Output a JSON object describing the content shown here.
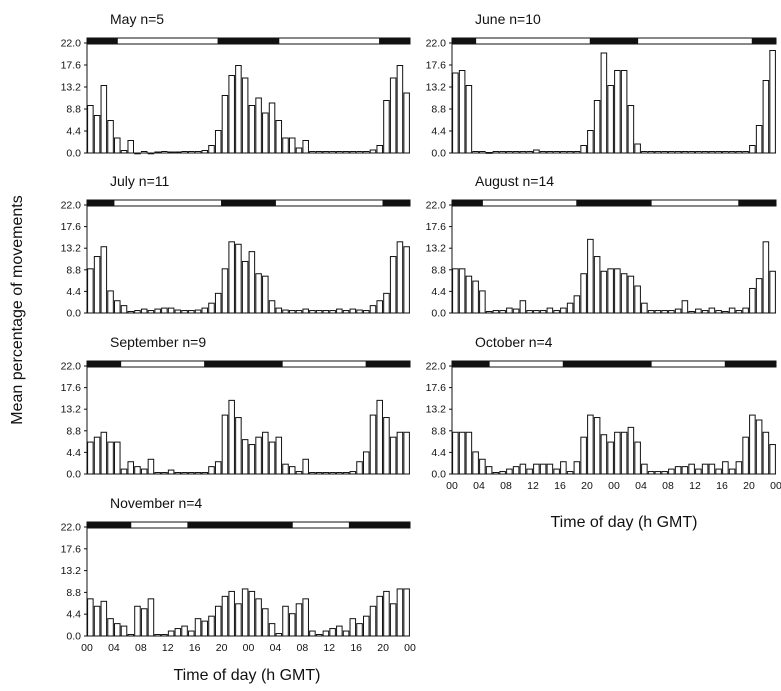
{
  "ylabel": "Mean percentage of movements",
  "xlabel": "Time of day (h GMT)",
  "xlabel_right": "Time of day (h GMT)",
  "yticks": [
    "0.0",
    "4.4",
    "8.8",
    "13.2",
    "17.6",
    "22.0"
  ],
  "xticks": [
    "00",
    "04",
    "08",
    "12",
    "16",
    "20",
    "00",
    "04",
    "08",
    "12",
    "16",
    "20",
    "00"
  ],
  "chart_data": [
    {
      "type": "bar",
      "title": "May n=5",
      "ylim": [
        0,
        22.0
      ],
      "x_range_h": [
        0,
        48
      ],
      "light_dark": [
        [
          "dark",
          0,
          4.5
        ],
        [
          "light",
          4.5,
          19.5
        ],
        [
          "dark",
          19.5,
          28.5
        ],
        [
          "light",
          28.5,
          43.5
        ],
        [
          "dark",
          43.5,
          48
        ]
      ],
      "values": [
        9.5,
        7.5,
        13.5,
        6.5,
        3.0,
        0.5,
        2.5,
        0,
        0.3,
        0,
        0.2,
        0.3,
        0.2,
        0.2,
        0.3,
        0.3,
        0.3,
        0.5,
        1.5,
        4.5,
        11.5,
        15.5,
        17.5,
        15.0,
        9.5,
        11.0,
        8.0,
        10.0,
        6.5,
        3.0,
        3.0,
        1.0,
        2.5,
        0.3,
        0.3,
        0.3,
        0.3,
        0.3,
        0.3,
        0.3,
        0.3,
        0.3,
        0.6,
        1.5,
        10.5,
        15.0,
        17.5,
        12.0
      ]
    },
    {
      "type": "bar",
      "title": "June n=10",
      "ylim": [
        0,
        22.0
      ],
      "x_range_h": [
        0,
        48
      ],
      "light_dark": [
        [
          "dark",
          0,
          3.5
        ],
        [
          "light",
          3.5,
          20.5
        ],
        [
          "dark",
          20.5,
          27.5
        ],
        [
          "light",
          27.5,
          44.5
        ],
        [
          "dark",
          44.5,
          48
        ]
      ],
      "values": [
        16.0,
        16.5,
        13.5,
        0.3,
        0.3,
        0.1,
        0.3,
        0.3,
        0.3,
        0.3,
        0.3,
        0.3,
        0.6,
        0.3,
        0.3,
        0.3,
        0.3,
        0.3,
        0.3,
        1.5,
        4.5,
        10.5,
        20.0,
        13.5,
        16.5,
        16.5,
        9.5,
        1.8,
        0.3,
        0.3,
        0.3,
        0.3,
        0.3,
        0.3,
        0.3,
        0.3,
        0.3,
        0.3,
        0.3,
        0.3,
        0.3,
        0.3,
        0.3,
        0.3,
        1.5,
        5.5,
        14.5,
        20.5
      ]
    },
    {
      "type": "bar",
      "title": "July n=11",
      "ylim": [
        0,
        22.0
      ],
      "x_range_h": [
        0,
        48
      ],
      "light_dark": [
        [
          "dark",
          0,
          4.0
        ],
        [
          "light",
          4.0,
          20.0
        ],
        [
          "dark",
          20.0,
          28.0
        ],
        [
          "light",
          28.0,
          44.0
        ],
        [
          "dark",
          44.0,
          48
        ]
      ],
      "values": [
        9.0,
        11.5,
        13.5,
        4.5,
        2.5,
        1.5,
        0.3,
        0.5,
        0.8,
        0.5,
        0.8,
        1.0,
        1.0,
        0.6,
        0.5,
        0.5,
        0.6,
        1.0,
        2.0,
        4.0,
        9.0,
        14.5,
        14.0,
        10.5,
        12.5,
        8.0,
        7.5,
        2.5,
        1.0,
        0.6,
        0.5,
        0.5,
        0.8,
        0.5,
        0.5,
        0.5,
        0.5,
        0.8,
        0.5,
        0.8,
        0.6,
        0.5,
        1.5,
        2.5,
        4.0,
        11.5,
        14.5,
        13.5
      ]
    },
    {
      "type": "bar",
      "title": "August n=14",
      "ylim": [
        0,
        22.0
      ],
      "x_range_h": [
        0,
        48
      ],
      "light_dark": [
        [
          "dark",
          0,
          4.5
        ],
        [
          "light",
          4.5,
          18.5
        ],
        [
          "dark",
          18.5,
          29.5
        ],
        [
          "light",
          29.5,
          42.5
        ],
        [
          "dark",
          42.5,
          48
        ]
      ],
      "values": [
        9.0,
        9.0,
        7.5,
        6.5,
        4.5,
        0.3,
        0.5,
        0.5,
        1.0,
        0.8,
        2.5,
        0.5,
        0.5,
        0.5,
        1.0,
        0.5,
        1.0,
        2.0,
        3.5,
        8.0,
        15.0,
        11.5,
        8.5,
        9.0,
        9.0,
        8.0,
        7.5,
        5.5,
        2.0,
        0.5,
        0.5,
        0.5,
        0.5,
        0.8,
        2.5,
        0.3,
        0.8,
        0.5,
        1.0,
        0.5,
        0.3,
        1.0,
        0.5,
        1.0,
        5.0,
        7.0,
        14.5,
        8.5
      ]
    },
    {
      "type": "bar",
      "title": "September n=9",
      "ylim": [
        0,
        22.0
      ],
      "x_range_h": [
        0,
        48
      ],
      "light_dark": [
        [
          "dark",
          0,
          5.0
        ],
        [
          "light",
          5.0,
          17.5
        ],
        [
          "dark",
          17.5,
          29.0
        ],
        [
          "light",
          29.0,
          41.5
        ],
        [
          "dark",
          41.5,
          48
        ]
      ],
      "values": [
        6.5,
        7.5,
        8.5,
        6.5,
        6.5,
        1.0,
        2.5,
        1.5,
        1.0,
        3.0,
        0.3,
        0.3,
        0.8,
        0.3,
        0.3,
        0.3,
        0.3,
        0.3,
        1.5,
        2.5,
        12.0,
        15.0,
        11.5,
        7.0,
        6.0,
        7.5,
        8.5,
        6.5,
        7.5,
        2.0,
        1.5,
        0.5,
        3.0,
        0.3,
        0.3,
        0.3,
        0.3,
        0.3,
        0.3,
        0.5,
        2.5,
        4.5,
        12.0,
        15.0,
        11.5,
        7.5,
        8.5,
        8.5
      ]
    },
    {
      "type": "bar",
      "title": "October n=4",
      "ylim": [
        0,
        22.0
      ],
      "x_range_h": [
        0,
        48
      ],
      "light_dark": [
        [
          "dark",
          0,
          5.5
        ],
        [
          "light",
          5.5,
          16.5
        ],
        [
          "dark",
          16.5,
          29.5
        ],
        [
          "light",
          29.5,
          40.5
        ],
        [
          "dark",
          40.5,
          48
        ]
      ],
      "values": [
        8.5,
        8.5,
        8.5,
        4.5,
        3.0,
        1.5,
        0.3,
        0.5,
        1.0,
        1.5,
        2.0,
        1.0,
        2.0,
        2.0,
        2.0,
        1.0,
        2.5,
        0.5,
        2.5,
        7.5,
        12.0,
        11.5,
        8.0,
        6.5,
        8.5,
        8.5,
        9.5,
        6.5,
        2.0,
        0.5,
        0.5,
        0.5,
        1.0,
        1.5,
        1.5,
        2.0,
        1.0,
        2.0,
        2.0,
        1.0,
        2.5,
        1.0,
        2.5,
        7.5,
        12.0,
        11.0,
        8.5,
        6.0
      ]
    },
    {
      "type": "bar",
      "title": "November n=4",
      "ylim": [
        0,
        22.0
      ],
      "x_range_h": [
        0,
        48
      ],
      "light_dark": [
        [
          "dark",
          0,
          6.5
        ],
        [
          "light",
          6.5,
          15.0
        ],
        [
          "dark",
          15.0,
          30.5
        ],
        [
          "light",
          30.5,
          39.0
        ],
        [
          "dark",
          39.0,
          48
        ]
      ],
      "values": [
        7.5,
        6.0,
        7.0,
        3.5,
        2.5,
        2.0,
        0.3,
        6.0,
        5.5,
        7.5,
        0.3,
        0.3,
        1.0,
        1.5,
        2.0,
        1.0,
        3.5,
        3.0,
        4.0,
        6.0,
        8.0,
        9.0,
        6.5,
        9.5,
        9.0,
        7.5,
        5.5,
        2.5,
        0.5,
        6.0,
        4.5,
        6.5,
        7.5,
        1.0,
        0.3,
        1.0,
        1.5,
        2.0,
        1.0,
        3.5,
        2.5,
        4.0,
        6.0,
        8.0,
        9.0,
        6.5,
        9.5,
        9.5
      ]
    }
  ]
}
